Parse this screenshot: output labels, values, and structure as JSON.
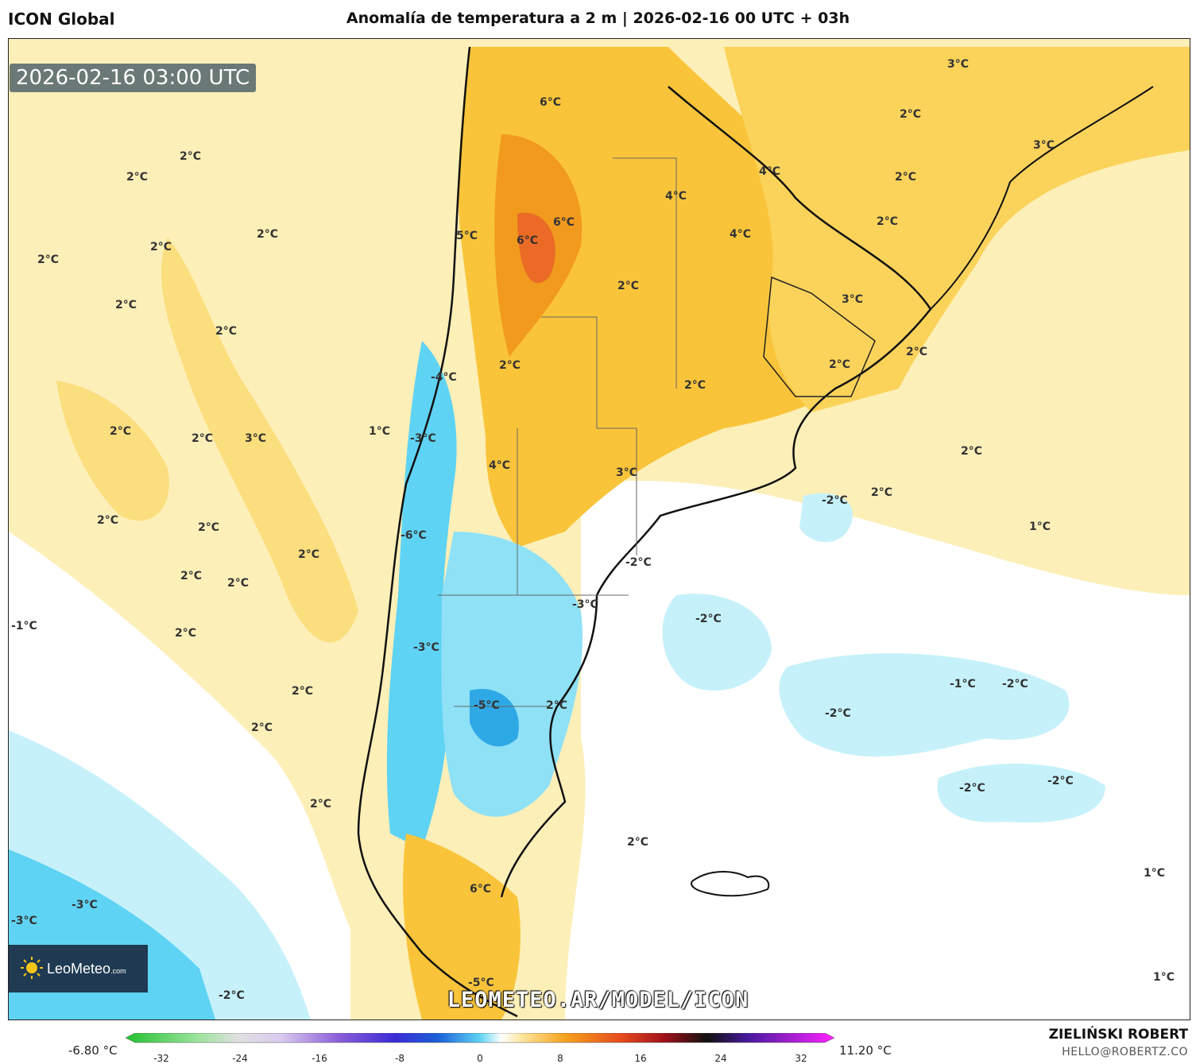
{
  "header": {
    "model": "ICON Global",
    "title": "Anomalía de temperatura a 2 m | 2026-02-16 00 UTC + 03h"
  },
  "valid_time": "2026-02-16 03:00 UTC",
  "logo": {
    "brand": "LeoMeteo",
    "suffix": ".com"
  },
  "watermark_url": "LEOMETEO.AR/MODEL/ICON",
  "colorbar": {
    "min_label": "-6.80 °C",
    "max_label": "11.20 °C",
    "ticks": [
      "-32",
      "-24",
      "-16",
      "-8",
      "0",
      "8",
      "16",
      "24",
      "32"
    ]
  },
  "credits": {
    "author": "ZIELIŃSKI ROBERT",
    "email": "HELLO@ROBERTZ.CO"
  },
  "labels": [
    "2°C",
    "2°C",
    "2°C",
    "2°C",
    "2°C",
    "2°C",
    "2°C",
    "2°C",
    "2°C",
    "3°C",
    "1°C",
    "2°C",
    "2°C",
    "2°C",
    "2°C",
    "2°C",
    "-1°C",
    "2°C",
    "2°C",
    "2°C",
    "2°C",
    "-3°C",
    "-3°C",
    "-2°C",
    "6°C",
    "5°C",
    "6°C",
    "6°C",
    "4°C",
    "4°C",
    "4°C",
    "2°C",
    "3°C",
    "2°C",
    "3°C",
    "2°C",
    "2°C",
    "3°C",
    "2°C",
    "2°C",
    "2°C",
    "-4°C",
    "-3°C",
    "4°C",
    "-6°C",
    "3°C",
    "-2°C",
    "-3°C",
    "-3°C",
    "-5°C",
    "2°C",
    "6°C",
    "2°C",
    "-2°C",
    "2°C",
    "2°C",
    "1°C",
    "-2°C",
    "-1°C",
    "-2°C",
    "-2°C",
    "-2°C",
    "-2°C",
    "1°C",
    "1°C",
    "2°C",
    "-5°C"
  ],
  "colors": {
    "warm": "#fde59a",
    "warmer": "#f9c43a",
    "hot": "#f29a1e",
    "cool": "#c6f1fb",
    "cold": "#5fd3f3",
    "colder": "#2fa9e6"
  }
}
